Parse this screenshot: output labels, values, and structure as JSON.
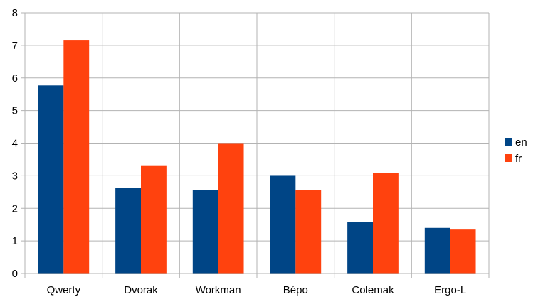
{
  "chart_data": {
    "type": "bar",
    "title": "",
    "xlabel": "",
    "ylabel": "",
    "categories": [
      "Qwerty",
      "Dvorak",
      "Workman",
      "Bépo",
      "Colemak",
      "Ergo-L"
    ],
    "series": [
      {
        "name": "en",
        "color": "#004586",
        "values": [
          5.77,
          2.63,
          2.56,
          3.02,
          1.58,
          1.4
        ]
      },
      {
        "name": "fr",
        "color": "#ff420e",
        "values": [
          7.17,
          3.32,
          4.0,
          2.56,
          3.08,
          1.37
        ]
      }
    ],
    "ylim": [
      0,
      8
    ],
    "yticks": [
      "0",
      "1",
      "2",
      "3",
      "4",
      "5",
      "6",
      "7",
      "8"
    ],
    "grid": true,
    "legend_position": "right",
    "grid_color": "#b3b3b3"
  }
}
